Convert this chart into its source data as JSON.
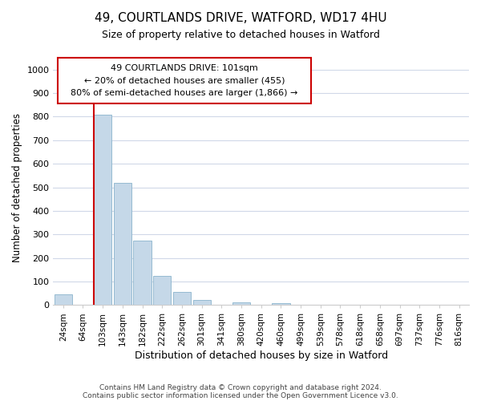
{
  "title": "49, COURTLANDS DRIVE, WATFORD, WD17 4HU",
  "subtitle": "Size of property relative to detached houses in Watford",
  "bar_labels": [
    "24sqm",
    "64sqm",
    "103sqm",
    "143sqm",
    "182sqm",
    "222sqm",
    "262sqm",
    "301sqm",
    "341sqm",
    "380sqm",
    "420sqm",
    "460sqm",
    "499sqm",
    "539sqm",
    "578sqm",
    "618sqm",
    "658sqm",
    "697sqm",
    "737sqm",
    "776sqm",
    "816sqm"
  ],
  "bar_values": [
    46,
    0,
    810,
    520,
    275,
    125,
    57,
    22,
    0,
    12,
    0,
    7,
    0,
    0,
    0,
    0,
    0,
    0,
    0,
    0,
    0
  ],
  "bar_color": "#c5d8e8",
  "bar_edge_color": "#8ab4cc",
  "highlight_bar_index": 2,
  "highlight_color": "#cc0000",
  "ylabel": "Number of detached properties",
  "xlabel": "Distribution of detached houses by size in Watford",
  "ylim": [
    0,
    1000
  ],
  "yticks": [
    0,
    100,
    200,
    300,
    400,
    500,
    600,
    700,
    800,
    900,
    1000
  ],
  "annotation_title": "49 COURTLANDS DRIVE: 101sqm",
  "annotation_line1": "← 20% of detached houses are smaller (455)",
  "annotation_line2": "80% of semi-detached houses are larger (1,866) →",
  "footer1": "Contains HM Land Registry data © Crown copyright and database right 2024.",
  "footer2": "Contains public sector information licensed under the Open Government Licence v3.0.",
  "background_color": "#ffffff",
  "grid_color": "#d0d8e8"
}
